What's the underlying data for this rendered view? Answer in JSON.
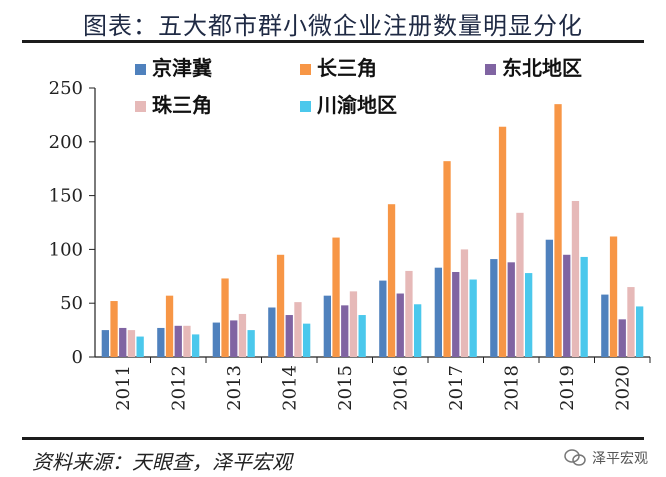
{
  "title": "图表：五大都市群小微企业注册数量明显分化",
  "source": "资料来源：天眼查，泽平宏观",
  "watermark": "泽平宏观",
  "chart_data": {
    "type": "bar",
    "categories": [
      "2011",
      "2012",
      "2013",
      "2014",
      "2015",
      "2016",
      "2017",
      "2018",
      "2019",
      "2020"
    ],
    "ylim": [
      0,
      250
    ],
    "yticks": [
      0,
      50,
      100,
      150,
      200,
      250
    ],
    "grid": false,
    "legend_position": "top",
    "series": [
      {
        "name": "京津冀",
        "color": "#4f81bd",
        "values": [
          25,
          27,
          32,
          46,
          57,
          71,
          83,
          91,
          109,
          58
        ]
      },
      {
        "name": "长三角",
        "color": "#f79646",
        "values": [
          52,
          57,
          73,
          95,
          111,
          142,
          182,
          214,
          235,
          112
        ]
      },
      {
        "name": "东北地区",
        "color": "#8064a2",
        "values": [
          27,
          29,
          34,
          39,
          48,
          59,
          79,
          88,
          95,
          35
        ]
      },
      {
        "name": "珠三角",
        "color": "#e6b9b8",
        "values": [
          25,
          29,
          40,
          51,
          61,
          80,
          100,
          134,
          145,
          65
        ]
      },
      {
        "name": "川渝地区",
        "color": "#4bc8ec",
        "values": [
          19,
          21,
          25,
          31,
          39,
          49,
          72,
          78,
          93,
          47
        ]
      }
    ]
  }
}
